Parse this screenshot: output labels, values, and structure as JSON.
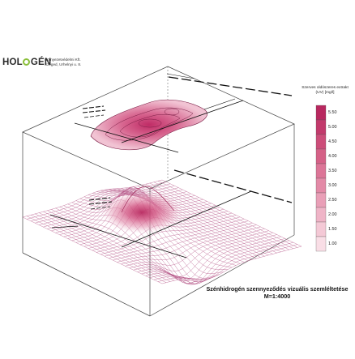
{
  "logo": {
    "text_a": "HOL",
    "text_b": "GÉN"
  },
  "company": {
    "line1": "Környezetvédelmi Kft.",
    "line2": "Szeged, Urhelnyi u. 8."
  },
  "legend": {
    "title": "Szerves oldószeres extrakt (UV) [mg/l]",
    "ticks": [
      "5.50",
      "5.00",
      "4.50",
      "4.00",
      "3.50",
      "3.00",
      "2.50",
      "2.00",
      "1.50",
      "1.00"
    ],
    "colors": [
      "#b8285f",
      "#c23a6c",
      "#cc4d79",
      "#d56187",
      "#dc7597",
      "#e38aa7",
      "#e99fb7",
      "#efb4c7",
      "#f4c9d6",
      "#f9dee6"
    ]
  },
  "caption": {
    "line1": "Szénhidrogén szennyeződés vizuális szemléltetése",
    "line2": "M=1:4000"
  },
  "colors": {
    "mesh": "#b04a80",
    "surface_peak": "#c2185b",
    "box": "#333333"
  }
}
